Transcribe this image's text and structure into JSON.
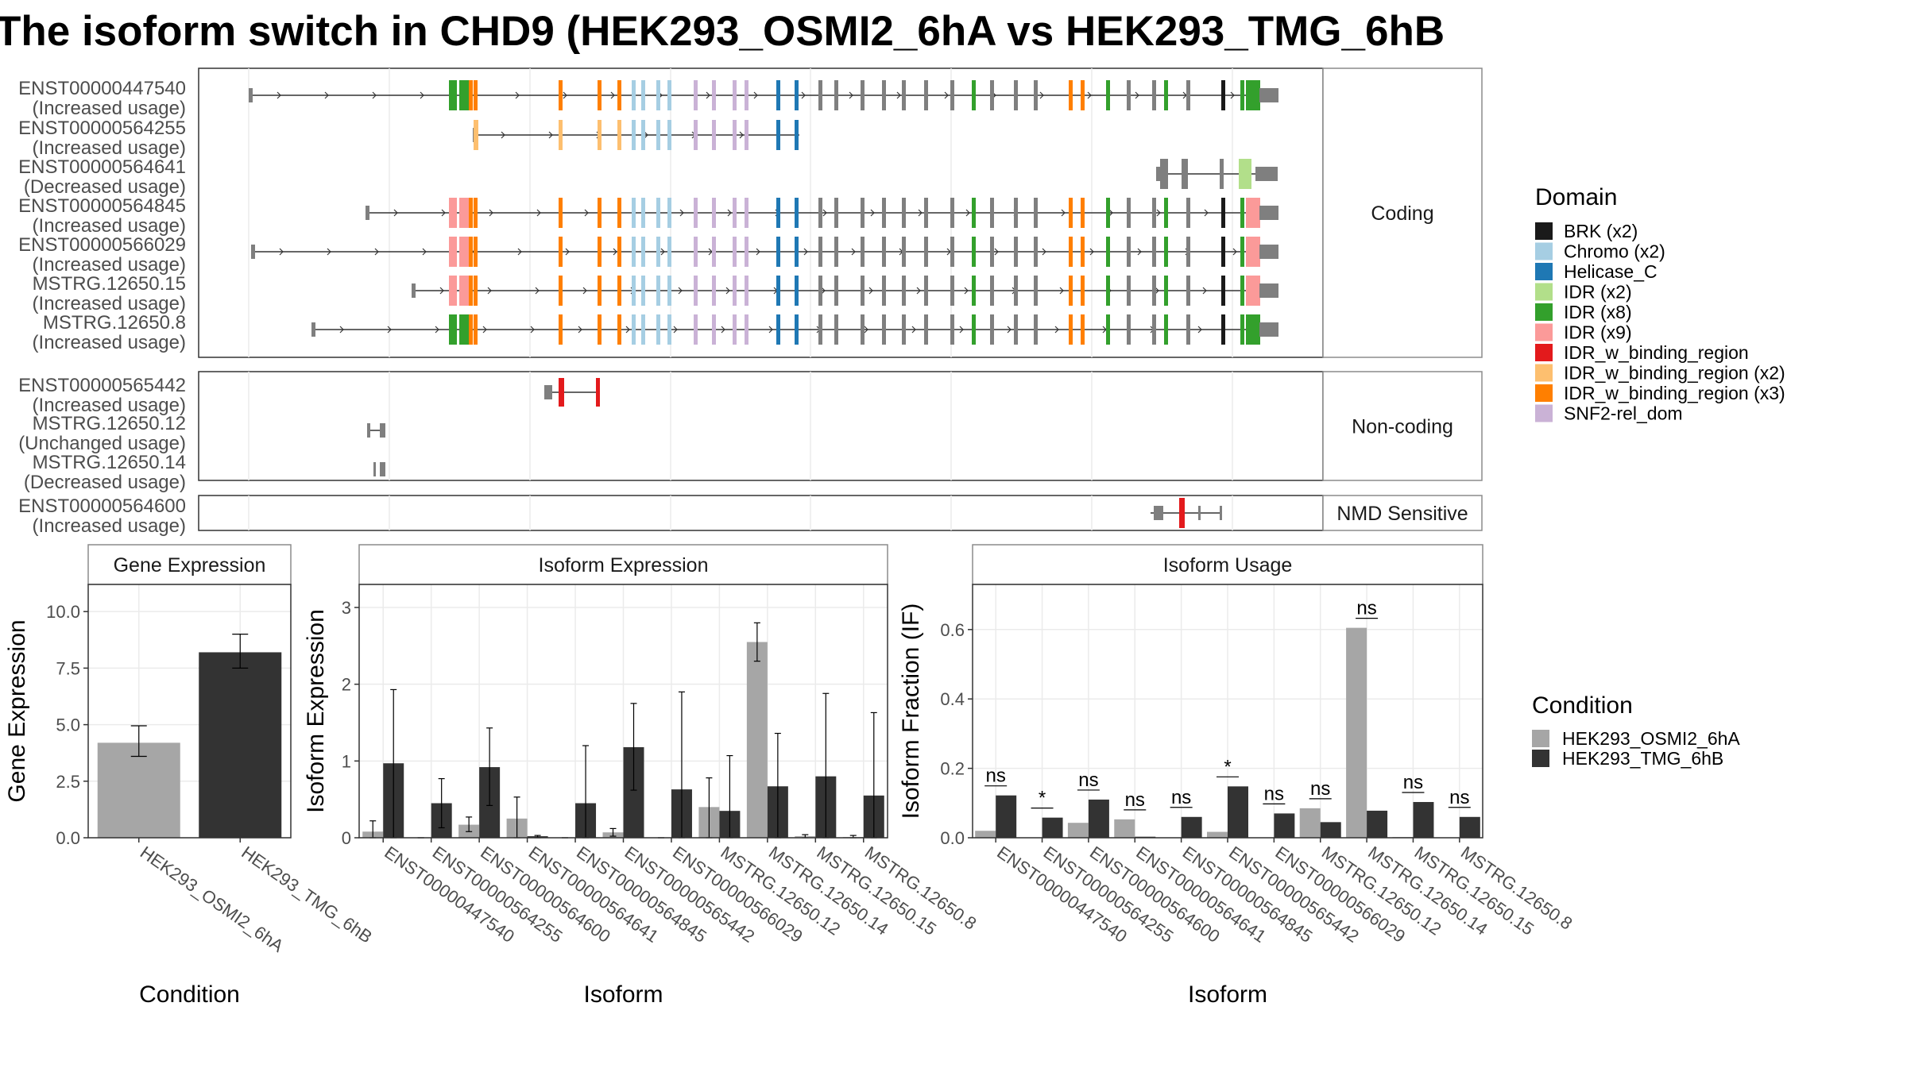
{
  "title": "The isoform switch in CHD9 (HEK293_OSMI2_6hA vs HEK293_TMG_6hB",
  "colors": {
    "cond_a": "#a6a6a6",
    "cond_b": "#333333",
    "grey_exon": "#7f7f7f",
    "panel_border": "#333333",
    "grid": "#ebebeb"
  },
  "domain_legend": {
    "title": "Domain",
    "items": [
      {
        "label": "BRK (x2)",
        "color": "#1a1a1a"
      },
      {
        "label": "Chromo (x2)",
        "color": "#a6cee3"
      },
      {
        "label": "Helicase_C",
        "color": "#1f78b4"
      },
      {
        "label": "IDR (x2)",
        "color": "#b2df8a"
      },
      {
        "label": "IDR (x8)",
        "color": "#33a02c"
      },
      {
        "label": "IDR (x9)",
        "color": "#fb9a99"
      },
      {
        "label": "IDR_w_binding_region",
        "color": "#e31a1c"
      },
      {
        "label": "IDR_w_binding_region (x2)",
        "color": "#fdbf6f"
      },
      {
        "label": "IDR_w_binding_region (x3)",
        "color": "#ff7f00"
      },
      {
        "label": "SNF2-rel_dom",
        "color": "#cab2d6"
      }
    ]
  },
  "condition_legend": {
    "title": "Condition",
    "items": [
      {
        "label": "HEK293_OSMI2_6hA",
        "color": "#a6a6a6"
      },
      {
        "label": "HEK293_TMG_6hB",
        "color": "#333333"
      }
    ]
  },
  "structure": {
    "groups": [
      {
        "label": "Coding",
        "transcripts": [
          {
            "id": "ENST00000447540",
            "status": "(Increased usage)"
          },
          {
            "id": "ENST00000564255",
            "status": "(Increased usage)"
          },
          {
            "id": "ENST00000564641",
            "status": "(Decreased usage)"
          },
          {
            "id": "ENST00000564845",
            "status": "(Increased usage)"
          },
          {
            "id": "ENST00000566029",
            "status": "(Increased usage)"
          },
          {
            "id": "MSTRG.12650.15",
            "status": "(Increased usage)"
          },
          {
            "id": "MSTRG.12650.8",
            "status": "(Increased usage)"
          }
        ]
      },
      {
        "label": "Non-coding",
        "transcripts": [
          {
            "id": "ENST00000565442",
            "status": "(Increased usage)"
          },
          {
            "id": "MSTRG.12650.12",
            "status": "(Unchanged usage)"
          },
          {
            "id": "MSTRG.12650.14",
            "status": "(Decreased usage)"
          }
        ]
      },
      {
        "label": "NMD Sensitive",
        "transcripts": [
          {
            "id": "ENST00000564600",
            "status": "(Increased usage)"
          }
        ]
      }
    ]
  },
  "chart_data": [
    {
      "type": "bar",
      "title": "Gene Expression",
      "xlabel": "Condition",
      "ylabel": "Gene Expression",
      "categories": [
        "HEK293_OSMI2_6hA",
        "HEK293_TMG_6hB"
      ],
      "values": [
        4.2,
        8.2
      ],
      "error_low": [
        3.6,
        7.5
      ],
      "error_high": [
        4.95,
        9.0
      ],
      "ylim": [
        0,
        11.2
      ],
      "yticks": [
        "0.0",
        "2.5",
        "5.0",
        "7.5",
        "10.0"
      ]
    },
    {
      "type": "bar",
      "title": "Isoform Expression",
      "xlabel": "Isoform",
      "ylabel": "Isoform Expression",
      "categories": [
        "ENST00000447540",
        "ENST00000564255",
        "ENST00000564600",
        "ENST00000564641",
        "ENST00000564845",
        "ENST00000565442",
        "ENST00000566029",
        "MSTRG.12650.12",
        "MSTRG.12650.14",
        "MSTRG.12650.15",
        "MSTRG.12650.8"
      ],
      "series": [
        {
          "name": "HEK293_OSMI2_6hA",
          "values": [
            0.08,
            0.0,
            0.17,
            0.25,
            0.0,
            0.07,
            0.0,
            0.4,
            2.55,
            0.02,
            0.01
          ],
          "err_low": [
            0.0,
            0.0,
            0.08,
            0.0,
            0.0,
            0.02,
            0.0,
            0.0,
            2.3,
            0.0,
            0.0
          ],
          "err_high": [
            0.22,
            0.0,
            0.27,
            0.53,
            0.0,
            0.12,
            0.0,
            0.78,
            2.8,
            0.04,
            0.03
          ]
        },
        {
          "name": "HEK293_TMG_6hB",
          "values": [
            0.97,
            0.45,
            0.92,
            0.02,
            0.45,
            1.18,
            0.63,
            0.35,
            0.67,
            0.8,
            0.55
          ],
          "err_low": [
            0.0,
            0.13,
            0.42,
            0.0,
            0.0,
            0.62,
            0.0,
            0.0,
            0.0,
            0.0,
            0.0
          ],
          "err_high": [
            1.93,
            0.77,
            1.43,
            0.03,
            1.2,
            1.75,
            1.9,
            1.07,
            1.36,
            1.88,
            1.63
          ]
        }
      ],
      "ylim": [
        0,
        3.3
      ],
      "yticks": [
        "0",
        "1",
        "2",
        "3"
      ]
    },
    {
      "type": "bar",
      "title": "Isoform Usage",
      "xlabel": "Isoform",
      "ylabel": "Isoform Fraction (IF)",
      "categories": [
        "ENST00000447540",
        "ENST00000564255",
        "ENST00000564600",
        "ENST00000564641",
        "ENST00000564845",
        "ENST00000565442",
        "ENST00000566029",
        "MSTRG.12650.12",
        "MSTRG.12650.14",
        "MSTRG.12650.15",
        "MSTRG.12650.8"
      ],
      "series": [
        {
          "name": "HEK293_OSMI2_6hA",
          "values": [
            0.02,
            0.0,
            0.043,
            0.053,
            0.0,
            0.017,
            0.0,
            0.085,
            0.605,
            0.002,
            0.001
          ]
        },
        {
          "name": "HEK293_TMG_6hB",
          "values": [
            0.122,
            0.058,
            0.11,
            0.003,
            0.06,
            0.148,
            0.07,
            0.045,
            0.078,
            0.103,
            0.06
          ]
        }
      ],
      "significance": [
        "ns",
        "*",
        "ns",
        "ns",
        "ns",
        "*",
        "ns",
        "ns",
        "ns",
        "ns",
        "ns"
      ],
      "ylim": [
        0,
        0.73
      ],
      "yticks": [
        "0.0",
        "0.2",
        "0.4",
        "0.6"
      ]
    }
  ]
}
